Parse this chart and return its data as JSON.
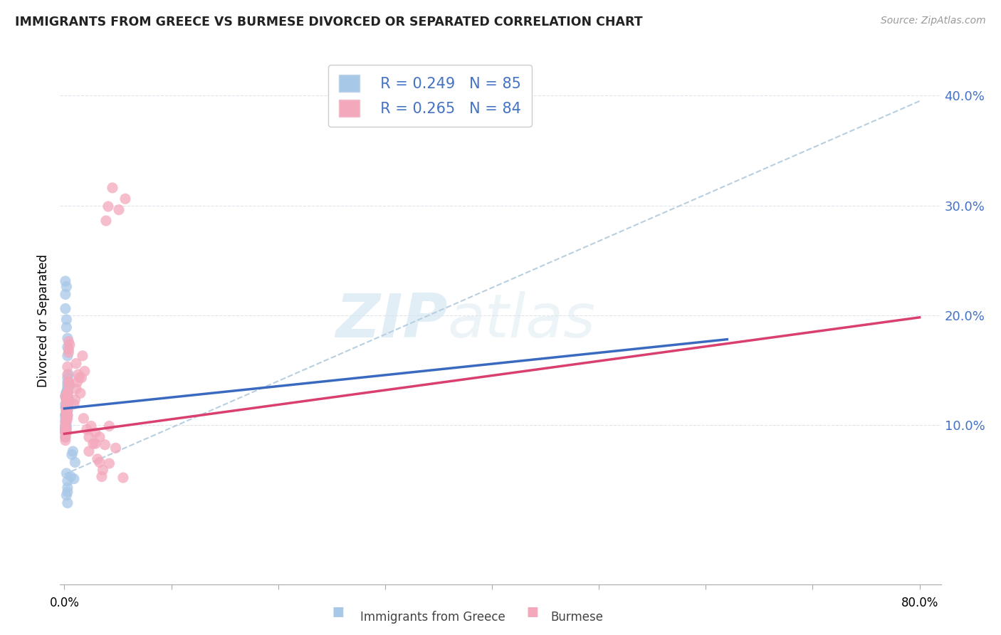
{
  "title": "IMMIGRANTS FROM GREECE VS BURMESE DIVORCED OR SEPARATED CORRELATION CHART",
  "source": "Source: ZipAtlas.com",
  "ylabel": "Divorced or Separated",
  "y_ticks": [
    0.1,
    0.2,
    0.3,
    0.4
  ],
  "y_tick_labels": [
    "10.0%",
    "20.0%",
    "30.0%",
    "40.0%"
  ],
  "x_min": -0.004,
  "x_max": 0.82,
  "y_min": -0.045,
  "y_max": 0.435,
  "legend_greece_label": "Immigrants from Greece",
  "legend_burmese_label": "Burmese",
  "legend_greece_R": "R = 0.249",
  "legend_greece_N": "N = 85",
  "legend_burmese_R": "R = 0.265",
  "legend_burmese_N": "N = 84",
  "greece_color": "#a8c8e8",
  "burmese_color": "#f4a8bc",
  "greece_line_color": "#3a6abf",
  "burmese_line_color": "#d94070",
  "dashed_color": "#b8cfe0",
  "watermark_zip": "ZIP",
  "watermark_atlas": "atlas",
  "greece_scatter_x": [
    0.002,
    0.003,
    0.001,
    0.004,
    0.003,
    0.002,
    0.005,
    0.003,
    0.002,
    0.001,
    0.004,
    0.003,
    0.002,
    0.003,
    0.002,
    0.002,
    0.003,
    0.003,
    0.002,
    0.003,
    0.001,
    0.001,
    0.002,
    0.003,
    0.002,
    0.003,
    0.001,
    0.002,
    0.003,
    0.003,
    0.002,
    0.001,
    0.003,
    0.002,
    0.002,
    0.001,
    0.002,
    0.003,
    0.002,
    0.001,
    0.003,
    0.002,
    0.002,
    0.001,
    0.003,
    0.002,
    0.002,
    0.001,
    0.002,
    0.003,
    0.001,
    0.001,
    0.002,
    0.003,
    0.002,
    0.001,
    0.002,
    0.003,
    0.002,
    0.001,
    0.002,
    0.003,
    0.001,
    0.001,
    0.002,
    0.003,
    0.001,
    0.001,
    0.002,
    0.003,
    0.008,
    0.01,
    0.009,
    0.007,
    0.006,
    0.001,
    0.002,
    0.002,
    0.003,
    0.003,
    0.001,
    0.001,
    0.002,
    0.003,
    0.002
  ],
  "greece_scatter_y": [
    0.126,
    0.131,
    0.119,
    0.123,
    0.116,
    0.129,
    0.136,
    0.113,
    0.109,
    0.126,
    0.146,
    0.139,
    0.116,
    0.121,
    0.111,
    0.111,
    0.163,
    0.171,
    0.13,
    0.13,
    0.096,
    0.106,
    0.119,
    0.113,
    0.099,
    0.109,
    0.103,
    0.116,
    0.179,
    0.123,
    0.116,
    0.089,
    0.126,
    0.119,
    0.106,
    0.093,
    0.129,
    0.119,
    0.109,
    0.096,
    0.143,
    0.129,
    0.116,
    0.099,
    0.133,
    0.123,
    0.113,
    0.096,
    0.126,
    0.119,
    0.109,
    0.093,
    0.129,
    0.136,
    0.116,
    0.099,
    0.123,
    0.119,
    0.109,
    0.096,
    0.129,
    0.123,
    0.116,
    0.099,
    0.126,
    0.119,
    0.109,
    0.096,
    0.056,
    0.049,
    0.076,
    0.066,
    0.051,
    0.073,
    0.053,
    0.206,
    0.196,
    0.189,
    0.029,
    0.039,
    0.231,
    0.219,
    0.226,
    0.043,
    0.036
  ],
  "burmese_scatter_x": [
    0.001,
    0.003,
    0.002,
    0.004,
    0.003,
    0.002,
    0.004,
    0.003,
    0.002,
    0.002,
    0.003,
    0.003,
    0.002,
    0.004,
    0.003,
    0.002,
    0.003,
    0.005,
    0.004,
    0.003,
    0.002,
    0.001,
    0.003,
    0.003,
    0.002,
    0.003,
    0.001,
    0.002,
    0.004,
    0.003,
    0.002,
    0.001,
    0.003,
    0.003,
    0.002,
    0.001,
    0.003,
    0.003,
    0.002,
    0.001,
    0.004,
    0.003,
    0.002,
    0.001,
    0.003,
    0.003,
    0.002,
    0.001,
    0.003,
    0.003,
    0.012,
    0.015,
    0.011,
    0.013,
    0.009,
    0.017,
    0.019,
    0.011,
    0.014,
    0.01,
    0.021,
    0.018,
    0.025,
    0.023,
    0.016,
    0.027,
    0.023,
    0.031,
    0.036,
    0.029,
    0.033,
    0.039,
    0.042,
    0.035,
    0.029,
    0.051,
    0.057,
    0.045,
    0.033,
    0.041,
    0.048,
    0.042,
    0.055,
    0.038
  ],
  "burmese_scatter_y": [
    0.126,
    0.129,
    0.116,
    0.136,
    0.119,
    0.123,
    0.139,
    0.116,
    0.113,
    0.119,
    0.146,
    0.129,
    0.113,
    0.166,
    0.119,
    0.109,
    0.153,
    0.173,
    0.176,
    0.129,
    0.093,
    0.103,
    0.116,
    0.109,
    0.096,
    0.106,
    0.099,
    0.113,
    0.169,
    0.119,
    0.113,
    0.086,
    0.123,
    0.116,
    0.103,
    0.089,
    0.126,
    0.116,
    0.106,
    0.093,
    0.139,
    0.126,
    0.113,
    0.096,
    0.129,
    0.119,
    0.109,
    0.093,
    0.123,
    0.116,
    0.139,
    0.129,
    0.156,
    0.146,
    0.119,
    0.163,
    0.149,
    0.133,
    0.143,
    0.123,
    0.096,
    0.106,
    0.099,
    0.089,
    0.143,
    0.083,
    0.076,
    0.069,
    0.059,
    0.093,
    0.066,
    0.286,
    0.099,
    0.053,
    0.083,
    0.296,
    0.306,
    0.316,
    0.089,
    0.299,
    0.079,
    0.065,
    0.052,
    0.082
  ],
  "greece_trend_x": [
    0.0,
    0.62
  ],
  "greece_trend_y": [
    0.115,
    0.178
  ],
  "burmese_trend_x": [
    0.0,
    0.8
  ],
  "burmese_trend_y": [
    0.092,
    0.198
  ],
  "dashed_trend_x": [
    0.0,
    0.8
  ],
  "dashed_trend_y": [
    0.055,
    0.395
  ]
}
